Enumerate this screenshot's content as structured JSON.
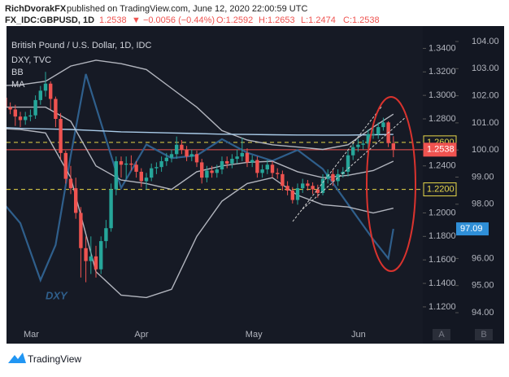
{
  "header": {
    "publisher": "RichDvorakFX",
    "published": "published on TradingView.com, June 12, 2020 22:00:59 UTC",
    "symbol": "FX_IDC:GBPUSD, 1D",
    "last": "1.2538",
    "change": "▼ −0.0056 (−0.44%)",
    "ohlc": [
      "O:1.2592",
      "H:1.2653",
      "L:1.2474",
      "C:1.2538"
    ]
  },
  "footer": {
    "brand": "TradingView",
    "buttons": [
      "A",
      "B"
    ]
  },
  "chart_data": {
    "type": "candlestick",
    "title": "British Pound / U.S. Dollar, 1D, IDC",
    "categories": [
      null,
      null,
      null,
      null,
      null,
      "Mar",
      null,
      null,
      null,
      null,
      null,
      null,
      null,
      null,
      null,
      null,
      null,
      null,
      null,
      null,
      null,
      null,
      null,
      null,
      null,
      null,
      null,
      "Apr",
      null,
      null,
      null,
      null,
      null,
      null,
      null,
      null,
      null,
      null,
      null,
      null,
      null,
      null,
      null,
      null,
      null,
      null,
      null,
      null,
      null,
      "May",
      null,
      null,
      null,
      null,
      null,
      null,
      null,
      null,
      null,
      null,
      null,
      null,
      null,
      null,
      null,
      null,
      null,
      null,
      null,
      null,
      "Jun",
      null,
      null,
      null,
      null,
      null,
      null,
      null,
      null,
      null
    ],
    "open": [
      1.299,
      1.296,
      1.298,
      1.29,
      1.288,
      1.282,
      1.279,
      1.282,
      1.283,
      1.296,
      1.304,
      1.31,
      1.297,
      1.28,
      1.251,
      1.229,
      1.221,
      1.2,
      1.17,
      1.159,
      1.163,
      1.152,
      1.176,
      1.187,
      1.22,
      1.244,
      1.241,
      1.242,
      1.241,
      1.235,
      1.227,
      1.23,
      1.238,
      1.239,
      1.244,
      1.247,
      1.25,
      1.258,
      1.254,
      1.248,
      1.25,
      1.243,
      1.23,
      1.236,
      1.234,
      1.237,
      1.244,
      1.242,
      1.246,
      1.248,
      1.251,
      1.243,
      1.245,
      1.234,
      1.237,
      1.241,
      1.234,
      1.233,
      1.223,
      1.219,
      1.211,
      1.221,
      1.225,
      1.223,
      1.22,
      1.217,
      1.229,
      1.233,
      1.227,
      1.233,
      1.235,
      1.249,
      1.256,
      1.258,
      1.259,
      1.267,
      1.267,
      1.273,
      1.277,
      1.2592
    ],
    "high": [
      1.303,
      1.302,
      1.302,
      1.294,
      1.292,
      1.286,
      1.286,
      1.288,
      1.3,
      1.308,
      1.32,
      1.312,
      1.299,
      1.285,
      1.253,
      1.24,
      1.23,
      1.205,
      1.18,
      1.18,
      1.172,
      1.18,
      1.194,
      1.225,
      1.248,
      1.248,
      1.248,
      1.249,
      1.244,
      1.238,
      1.234,
      1.242,
      1.243,
      1.248,
      1.251,
      1.254,
      1.265,
      1.262,
      1.257,
      1.254,
      1.253,
      1.246,
      1.24,
      1.24,
      1.241,
      1.248,
      1.248,
      1.25,
      1.254,
      1.264,
      1.255,
      1.249,
      1.248,
      1.241,
      1.245,
      1.244,
      1.238,
      1.236,
      1.227,
      1.222,
      1.225,
      1.229,
      1.228,
      1.226,
      1.224,
      1.233,
      1.237,
      1.237,
      1.237,
      1.239,
      1.253,
      1.259,
      1.263,
      1.262,
      1.271,
      1.273,
      1.277,
      1.281,
      1.278,
      1.2653
    ],
    "low": [
      1.292,
      1.292,
      1.286,
      1.284,
      1.274,
      1.273,
      1.275,
      1.278,
      1.28,
      1.292,
      1.299,
      1.288,
      1.273,
      1.245,
      1.225,
      1.216,
      1.195,
      1.145,
      1.141,
      1.148,
      1.145,
      1.148,
      1.17,
      1.184,
      1.215,
      1.23,
      1.229,
      1.236,
      1.23,
      1.222,
      1.22,
      1.227,
      1.233,
      1.235,
      1.24,
      1.243,
      1.246,
      1.25,
      1.244,
      1.244,
      1.239,
      1.225,
      1.226,
      1.23,
      1.23,
      1.233,
      1.238,
      1.238,
      1.242,
      1.244,
      1.239,
      1.239,
      1.23,
      1.23,
      1.233,
      1.23,
      1.229,
      1.219,
      1.215,
      1.208,
      1.207,
      1.217,
      1.219,
      1.216,
      1.213,
      1.215,
      1.225,
      1.223,
      1.223,
      1.23,
      1.231,
      1.245,
      1.252,
      1.254,
      1.255,
      1.263,
      1.263,
      1.27,
      1.256,
      1.2474
    ],
    "close": [
      1.296,
      1.298,
      1.29,
      1.288,
      1.282,
      1.279,
      1.282,
      1.283,
      1.296,
      1.304,
      1.31,
      1.297,
      1.28,
      1.251,
      1.229,
      1.221,
      1.2,
      1.17,
      1.159,
      1.163,
      1.152,
      1.176,
      1.187,
      1.22,
      1.244,
      1.241,
      1.242,
      1.241,
      1.235,
      1.227,
      1.23,
      1.238,
      1.239,
      1.244,
      1.247,
      1.25,
      1.258,
      1.254,
      1.248,
      1.25,
      1.243,
      1.23,
      1.236,
      1.234,
      1.237,
      1.244,
      1.242,
      1.246,
      1.248,
      1.251,
      1.243,
      1.245,
      1.234,
      1.237,
      1.241,
      1.234,
      1.233,
      1.223,
      1.219,
      1.211,
      1.221,
      1.225,
      1.223,
      1.22,
      1.217,
      1.229,
      1.233,
      1.227,
      1.233,
      1.235,
      1.249,
      1.256,
      1.258,
      1.259,
      1.267,
      1.267,
      1.273,
      1.277,
      1.2594,
      1.2538
    ],
    "up_color": "#26a69a",
    "down_color": "#ef5350",
    "series": [
      {
        "name": "BB",
        "color": "#b2b5be",
        "x": [
          0,
          5,
          10,
          15,
          20,
          25,
          30,
          35,
          40,
          45,
          50,
          55,
          60,
          65,
          70,
          75,
          79
        ],
        "values": [
          1.308,
          1.309,
          1.312,
          1.325,
          1.33,
          1.327,
          1.322,
          1.306,
          1.29,
          1.27,
          1.262,
          1.258,
          1.256,
          1.254,
          1.258,
          1.273,
          1.284
        ]
      },
      {
        "color": "#b2b5be",
        "x": [
          0,
          5,
          10,
          15,
          20,
          25,
          30,
          35,
          40,
          45,
          50,
          55,
          60,
          65,
          70,
          75,
          79
        ],
        "values": [
          1.29,
          1.29,
          1.29,
          1.278,
          1.24,
          1.228,
          1.225,
          1.22,
          1.235,
          1.24,
          1.243,
          1.244,
          1.235,
          1.23,
          1.232,
          1.236,
          1.244
        ]
      },
      {
        "color": "#b2b5be",
        "x": [
          0,
          5,
          10,
          15,
          20,
          25,
          30,
          35,
          40,
          45,
          50,
          55,
          60,
          65,
          70,
          75,
          79
        ],
        "values": [
          1.272,
          1.271,
          1.268,
          1.23,
          1.15,
          1.13,
          1.128,
          1.135,
          1.18,
          1.21,
          1.225,
          1.23,
          1.215,
          1.207,
          1.205,
          1.2,
          1.204
        ]
      },
      {
        "name": "MA",
        "color": "#a9cbe8",
        "x": [
          0,
          5,
          10,
          15,
          20,
          25,
          30,
          35,
          40,
          45,
          50,
          55,
          60,
          65,
          70,
          75,
          79
        ],
        "values": [
          1.273,
          1.272,
          1.2715,
          1.271,
          1.27,
          1.269,
          1.2685,
          1.268,
          1.2675,
          1.267,
          1.2668,
          1.2665,
          1.2663,
          1.2662,
          1.2662,
          1.2665,
          1.2668
        ]
      },
      {
        "name": "DXY, TVC",
        "color": "#2f5f8c",
        "axis": "y2",
        "x": [
          0,
          5,
          9,
          12,
          15,
          18,
          21,
          25,
          30,
          35,
          40,
          45,
          50,
          55,
          60,
          65,
          70,
          75,
          78,
          79
        ],
        "values": [
          98.4,
          97.3,
          95.2,
          96.5,
          99.8,
          102.8,
          101.0,
          98.6,
          100.2,
          99.7,
          99.8,
          100.4,
          99.9,
          99.6,
          100.0,
          99.3,
          98.0,
          96.7,
          96.0,
          97.09
        ]
      }
    ],
    "ylim": [
      1.104,
      1.359
    ],
    "yticks": [
      {
        "value": 1.34,
        "label": "1.3400"
      },
      {
        "value": 1.32,
        "label": "1.3200"
      },
      {
        "value": 1.3,
        "label": "1.3000"
      },
      {
        "value": 1.28,
        "label": "1.2800"
      },
      {
        "value": 1.24,
        "label": "1.2400"
      },
      {
        "value": 1.2,
        "label": "1.2000"
      },
      {
        "value": 1.18,
        "label": "1.1800"
      },
      {
        "value": 1.16,
        "label": "1.1600"
      },
      {
        "value": 1.14,
        "label": "1.1400"
      },
      {
        "value": 1.12,
        "label": "1.1200"
      }
    ],
    "y2lim": [
      93.52,
      104.57
    ],
    "y2ticks": [
      {
        "value": 104,
        "label": "104.00"
      },
      {
        "value": 103,
        "label": "103.00"
      },
      {
        "value": 102,
        "label": "102.00"
      },
      {
        "value": 101,
        "label": "101.00"
      },
      {
        "value": 100,
        "label": "100.00"
      },
      {
        "value": 99,
        "label": "99.00"
      },
      {
        "value": 98,
        "label": "98.00"
      },
      {
        "value": 96,
        "label": "96.00"
      },
      {
        "value": 95,
        "label": "95.00"
      },
      {
        "value": 94,
        "label": "94.00"
      }
    ],
    "price_lines": [
      {
        "value": 1.26,
        "label": "1.2600",
        "color": "#e8d84a",
        "dashed": true
      },
      {
        "value": 1.2538,
        "label": "1.2538",
        "color": "#ef5350",
        "dashed": false
      },
      {
        "value": 1.22,
        "label": "1.2200",
        "color": "#e8d84a",
        "dashed": true
      }
    ],
    "y2_tag": {
      "value": 97.09,
      "label": "97.09",
      "color": "#2f8fd8"
    },
    "annotation": "DXY"
  }
}
